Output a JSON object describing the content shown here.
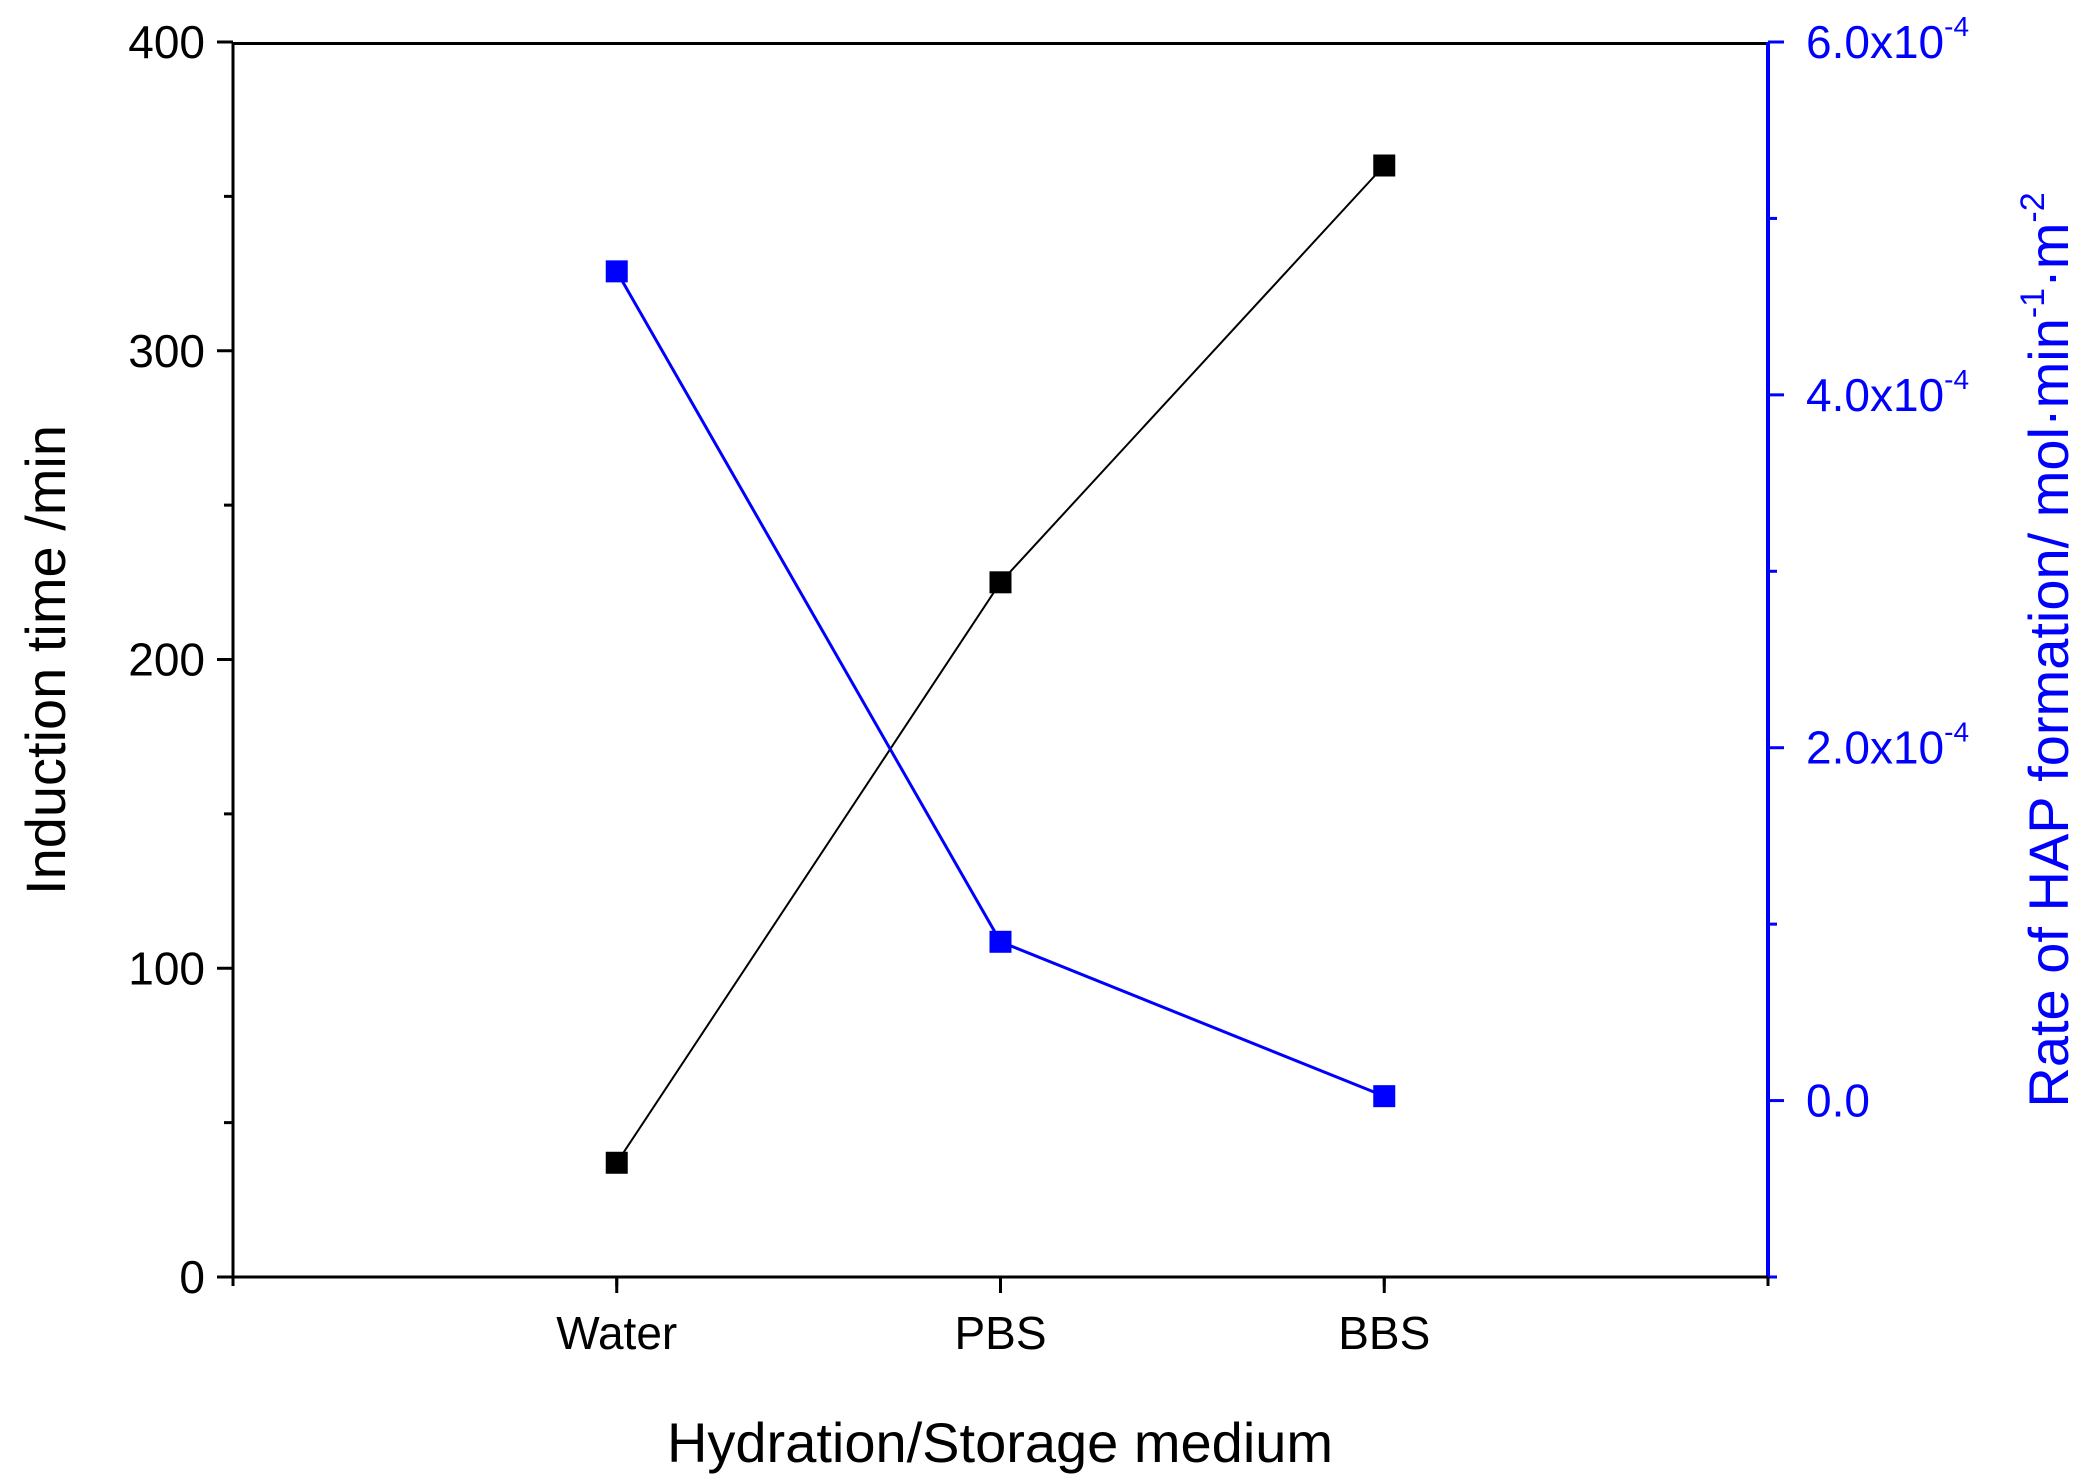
{
  "chart_data": {
    "type": "line",
    "categories": [
      "Water",
      "PBS",
      "BBS"
    ],
    "xlabel": "Hydration/Storage medium",
    "series": [
      {
        "name": "Induction time",
        "axis": "left",
        "color": "#000000",
        "values": [
          37,
          225,
          360
        ]
      },
      {
        "name": "Rate of HAP formation",
        "axis": "right",
        "color": "#0000ff",
        "values": [
          0.00047,
          9e-05,
          2.5e-06
        ]
      }
    ],
    "left_axis": {
      "label": "Induction time /min",
      "ylim": [
        0,
        400
      ],
      "major_ticks": [
        0,
        100,
        200,
        300,
        400
      ],
      "minor_ticks": [
        50,
        150,
        250,
        350
      ],
      "tick_labels": [
        "0",
        "100",
        "200",
        "300",
        "400"
      ]
    },
    "right_axis": {
      "label_main": "Rate of HAP formation/ mol·min",
      "label_sup1": "-1",
      "label_mid": "·m",
      "label_sup2": "-2",
      "ylim": [
        -0.0001,
        0.0006
      ],
      "major_ticks": [
        0.0,
        0.0002,
        0.0004,
        0.0006
      ],
      "minor_ticks": [
        -0.0001,
        0.0001,
        0.0003,
        0.0005
      ],
      "tick_labels": [
        {
          "base": "0.0",
          "exp": ""
        },
        {
          "base": "2.0x10",
          "exp": "-4"
        },
        {
          "base": "4.0x10",
          "exp": "-4"
        },
        {
          "base": "6.0x10",
          "exp": "-4"
        }
      ]
    }
  }
}
